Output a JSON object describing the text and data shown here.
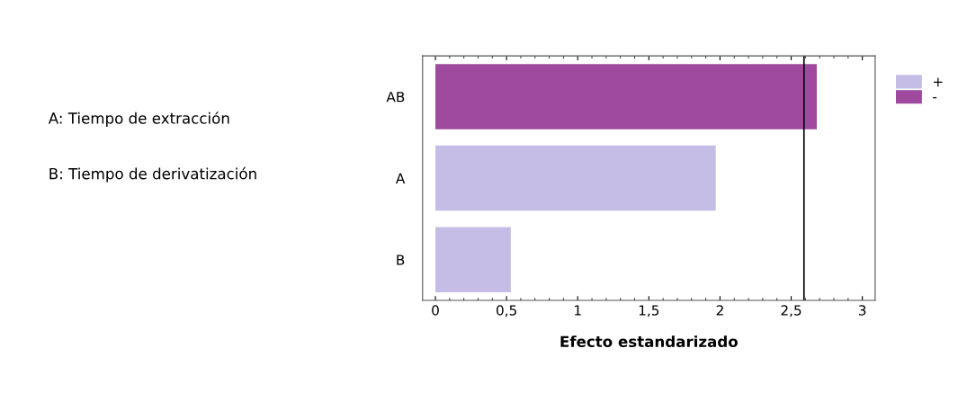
{
  "chart_data": {
    "type": "bar",
    "orientation": "horizontal",
    "xlabel": "Efecto estandarizado",
    "categories": [
      "AB",
      "A",
      "B"
    ],
    "series": [
      {
        "name": "+",
        "color": "#c5bde5",
        "values": [
          null,
          1.97,
          0.53
        ]
      },
      {
        "name": "-",
        "color": "#a04a9f",
        "values": [
          2.68,
          null,
          null
        ]
      }
    ],
    "xlim": [
      -0.09,
      3.09
    ],
    "xticks": [
      0,
      {
        "value": 0.5,
        "label": "0,5"
      },
      1,
      {
        "value": 1.5,
        "label": "1,5"
      },
      2,
      {
        "value": 2.5,
        "label": "2,5"
      },
      3
    ],
    "ref_lines": [
      {
        "axis": "x",
        "value": 2.59,
        "color": "#000000"
      }
    ],
    "legend": "top right",
    "grid": false,
    "annotations": [
      "A: Tiempo de extracción",
      "B: Tiempo de derivatización"
    ]
  }
}
